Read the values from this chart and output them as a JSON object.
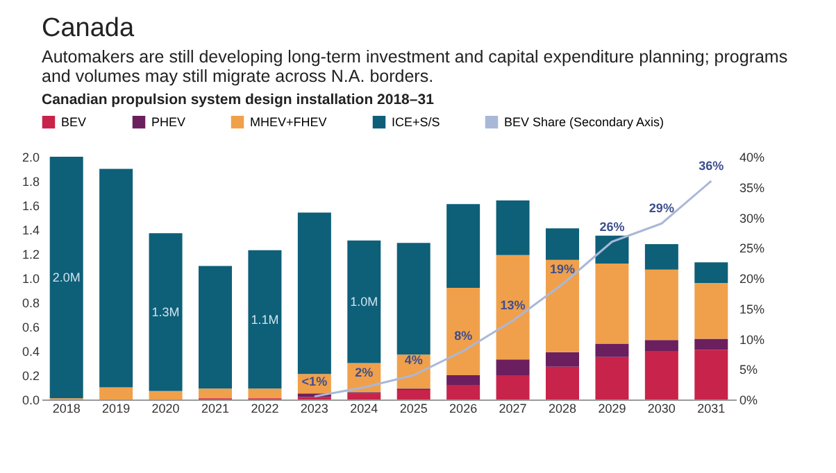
{
  "chart_data": {
    "type": "bar",
    "title": "Canada",
    "subtitle": "Automakers are still developing long-term investment and capital expenditure planning; programs and volumes may still migrate across N.A. borders.",
    "annotations": [
      "Canadian propulsion system design installation 2018–31"
    ],
    "categories": [
      "2018",
      "2019",
      "2020",
      "2021",
      "2022",
      "2023",
      "2024",
      "2025",
      "2026",
      "2027",
      "2028",
      "2029",
      "2030",
      "2031"
    ],
    "stacked": true,
    "legend": "top",
    "ylim": [
      0,
      2.0
    ],
    "yticks": [
      {
        "value": 0,
        "label": "0.0"
      },
      {
        "value": 0.2,
        "label": "0.2"
      },
      {
        "value": 0.4,
        "label": "0.4"
      },
      {
        "value": 0.6,
        "label": "0.6"
      },
      {
        "value": 0.8,
        "label": "0.8"
      },
      {
        "value": 1.0,
        "label": "1.0"
      },
      {
        "value": 1.2,
        "label": "1.2"
      },
      {
        "value": 1.4,
        "label": "1.4"
      },
      {
        "value": 1.6,
        "label": "1.6"
      },
      {
        "value": 1.8,
        "label": "1.8"
      },
      {
        "value": 2.0,
        "label": "2.0"
      }
    ],
    "y2lim": [
      0,
      40
    ],
    "y2ticks": [
      {
        "value": 0,
        "label": "0%"
      },
      {
        "value": 5,
        "label": "5%"
      },
      {
        "value": 10,
        "label": "10%"
      },
      {
        "value": 15,
        "label": "15%"
      },
      {
        "value": 20,
        "label": "20%"
      },
      {
        "value": 25,
        "label": "25%"
      },
      {
        "value": 30,
        "label": "30%"
      },
      {
        "value": 35,
        "label": "35%"
      },
      {
        "value": 40,
        "label": "40%"
      }
    ],
    "series": [
      {
        "name": "BEV",
        "color": "#c8234a",
        "values": [
          0,
          0,
          0,
          0.01,
          0.01,
          0.02,
          0.05,
          0.08,
          0.12,
          0.2,
          0.27,
          0.35,
          0.4,
          0.41
        ]
      },
      {
        "name": "PHEV",
        "color": "#6b1f5e",
        "values": [
          0,
          0,
          0,
          0,
          0,
          0.03,
          0.01,
          0.01,
          0.08,
          0.13,
          0.12,
          0.11,
          0.09,
          0.09
        ]
      },
      {
        "name": "MHEV+FHEV",
        "color": "#f0a04b",
        "values": [
          0.01,
          0.1,
          0.07,
          0.08,
          0.08,
          0.16,
          0.24,
          0.28,
          0.72,
          0.86,
          0.76,
          0.66,
          0.58,
          0.46
        ]
      },
      {
        "name": "ICE+S/S",
        "color": "#0e5f78",
        "values": [
          1.99,
          1.8,
          1.3,
          1.01,
          1.14,
          1.33,
          1.01,
          0.92,
          0.69,
          0.45,
          0.26,
          0.23,
          0.21,
          0.17
        ],
        "value_labels": [
          "2.0M",
          null,
          "1.3M",
          null,
          "1.1M",
          null,
          "1.0M",
          null,
          null,
          null,
          null,
          null,
          null,
          null
        ]
      },
      {
        "name": "BEV Share (Secondary Axis)",
        "type": "line",
        "axis": "y2",
        "color": "#a9b8d8",
        "values": [
          null,
          null,
          null,
          null,
          null,
          0.5,
          2,
          4,
          8,
          13,
          19,
          26,
          29,
          36
        ],
        "value_labels": [
          null,
          null,
          null,
          null,
          null,
          "<1%",
          "2%",
          "4%",
          "8%",
          "13%",
          "19%",
          "26%",
          "29%",
          "36%"
        ]
      }
    ]
  }
}
